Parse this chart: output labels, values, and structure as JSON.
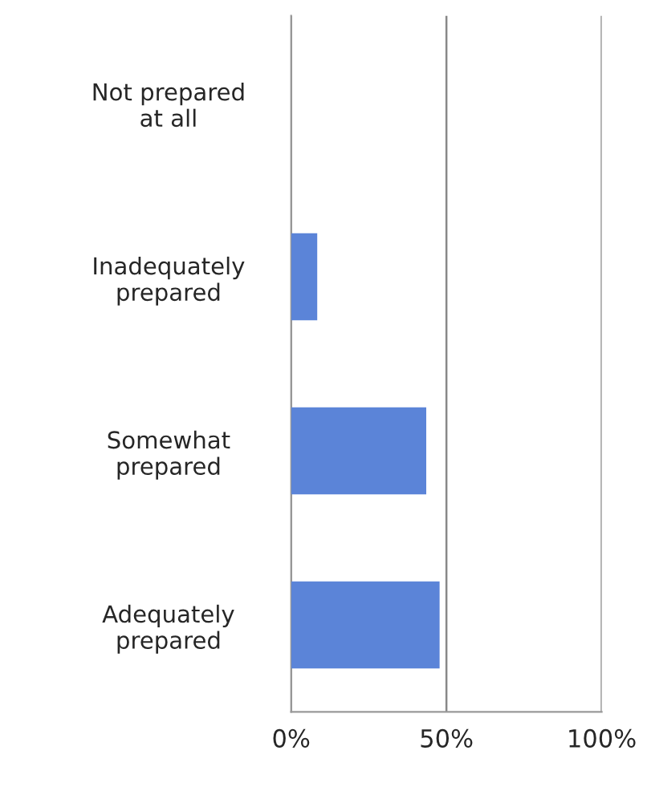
{
  "chart_data": {
    "type": "bar",
    "orientation": "horizontal",
    "categories": [
      "Not prepared at all",
      "Inadequately prepared",
      "Somewhat prepared",
      "Adequately prepared"
    ],
    "values": [
      0,
      8.4,
      43.5,
      47.8
    ],
    "color": "#5b84d8",
    "xlim": [
      0,
      100
    ],
    "xticks": [
      {
        "value": 0,
        "label": "0%"
      },
      {
        "value": 50,
        "label": "50%"
      },
      {
        "value": 100,
        "label": "100%"
      }
    ],
    "grid": "x"
  }
}
